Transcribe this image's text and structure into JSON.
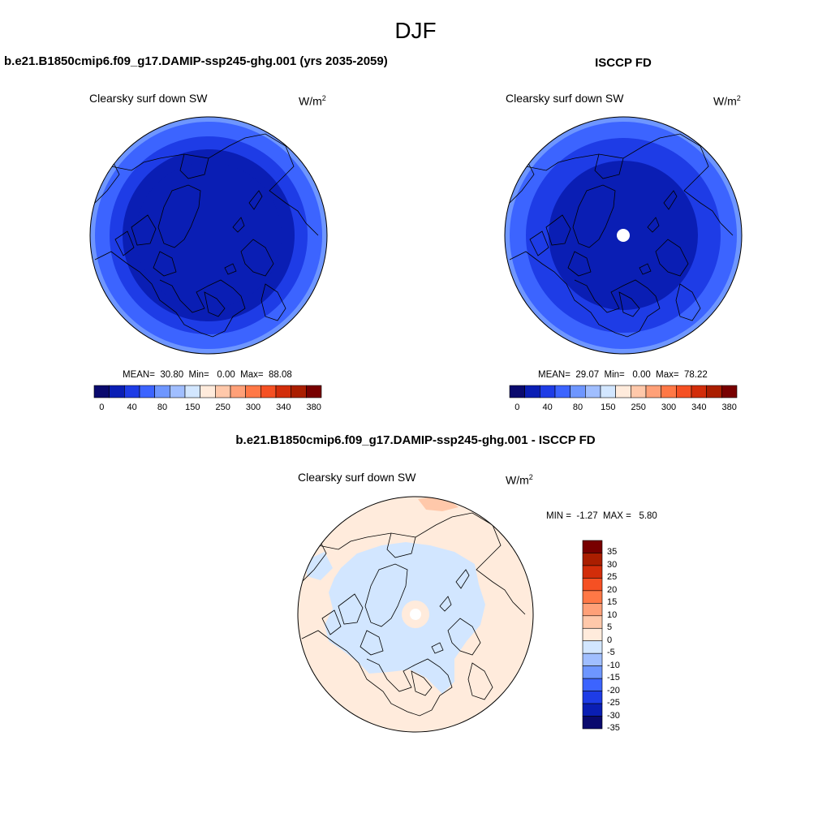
{
  "figure": {
    "season": "DJF",
    "case_name": "b.e21.B1850cmip6.f09_g17.DAMIP-ssp245-ghg.001 (yrs 2035-2059)",
    "obs_name": "ISCCP FD",
    "diff_title": "b.e21.B1850cmip6.f09_g17.DAMIP-ssp245-ghg.001 - ISCCP FD"
  },
  "panels": {
    "model": {
      "variable": "Clearsky surf down SW",
      "units_base": "W/m",
      "units_exp": "2",
      "stats": {
        "mean_label": "MEAN=",
        "mean": "30.80",
        "min_label": "Min=",
        "min": "0.00",
        "max_label": "Max=",
        "max": "88.08"
      }
    },
    "obs": {
      "variable": "Clearsky surf down SW",
      "units_base": "W/m",
      "units_exp": "2",
      "stats": {
        "mean_label": "MEAN=",
        "mean": "29.07",
        "min_label": "Min=",
        "min": "0.00",
        "max_label": "Max=",
        "max": "78.22"
      }
    },
    "diff": {
      "variable": "Clearsky surf down SW",
      "units_base": "W/m",
      "units_exp": "2",
      "stats": {
        "min_label": "MIN =",
        "min": "-1.27",
        "max_label": "MAX =",
        "max": "5.80"
      }
    }
  },
  "colorbars": {
    "abs": {
      "orientation": "horizontal",
      "labels": [
        "0",
        "40",
        "80",
        "150",
        "250",
        "300",
        "340",
        "380"
      ],
      "colors": [
        "#0a0a6e",
        "#0a1eb4",
        "#1e3ce6",
        "#3c64ff",
        "#6e96ff",
        "#a0beff",
        "#d2e6ff",
        "#ffebdc",
        "#ffc8aa",
        "#ffa078",
        "#ff7846",
        "#f55023",
        "#d22d0a",
        "#aa1e00",
        "#780000"
      ]
    },
    "diff": {
      "orientation": "vertical",
      "labels": [
        "35",
        "30",
        "25",
        "20",
        "15",
        "10",
        "5",
        "0",
        "-5",
        "-10",
        "-15",
        "-20",
        "-25",
        "-30",
        "-35"
      ],
      "colors": [
        "#780000",
        "#aa1e00",
        "#d22d0a",
        "#f55023",
        "#ff7846",
        "#ffa078",
        "#ffc8aa",
        "#ffebdc",
        "#d2e6ff",
        "#a0beff",
        "#6e96ff",
        "#3c64ff",
        "#1e3ce6",
        "#0a1eb4",
        "#0a0a6e"
      ]
    }
  },
  "map_colors": {
    "ring_outer": "#3c64ff",
    "ring_2": "#1e3ce6",
    "ring_3": "#0a1eb4",
    "ring_outer_edge": "#6e96ff",
    "diff_bg": "#ffebdc",
    "diff_neg": "#d2e6ff",
    "diff_pos": "#ffc8aa",
    "missing": "#ffffff"
  }
}
